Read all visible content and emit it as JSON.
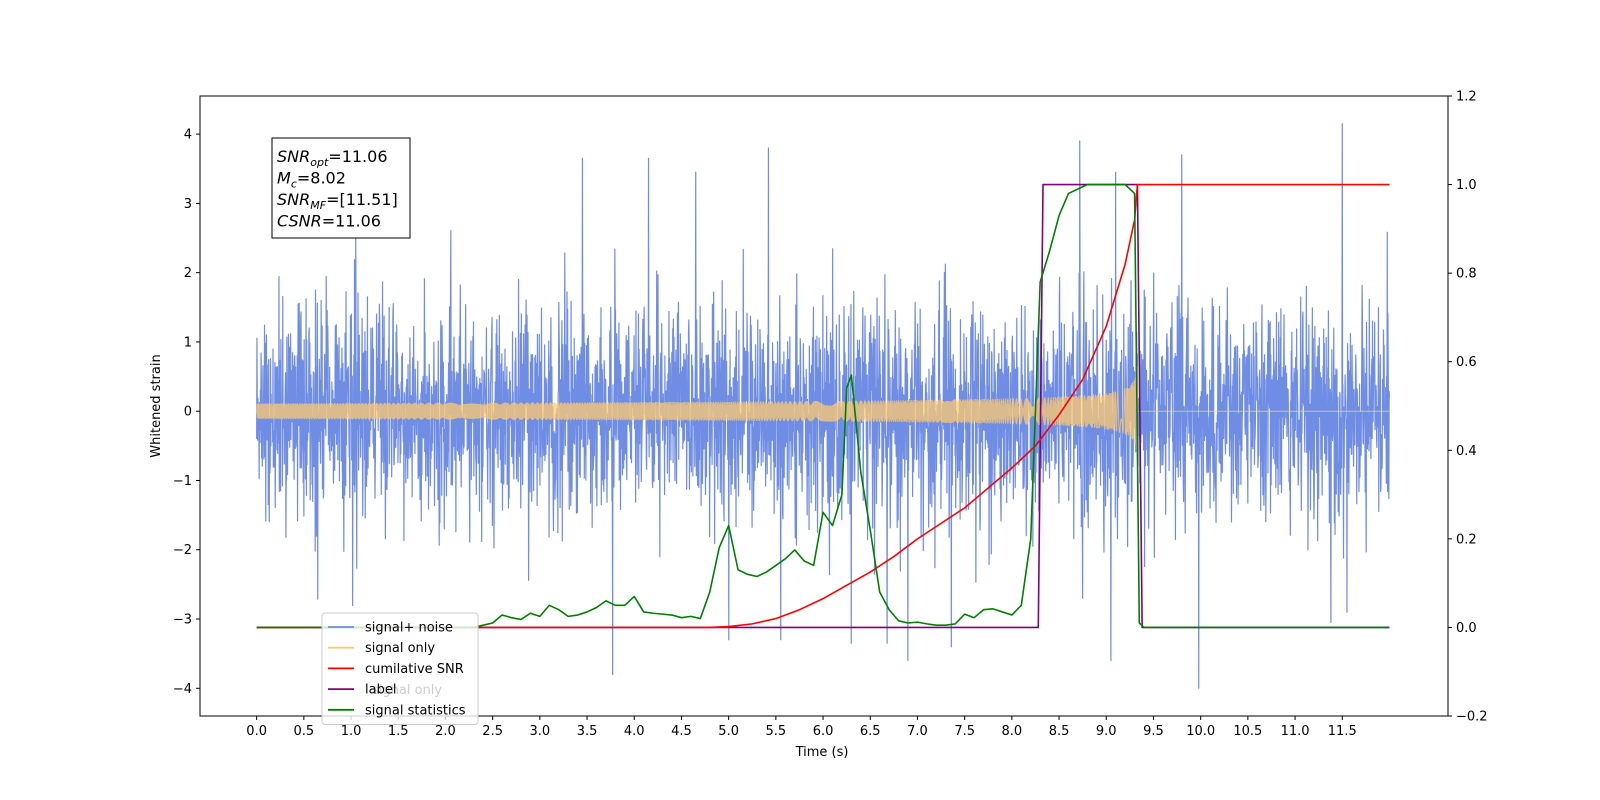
{
  "chart_data": {
    "type": "line",
    "xlabel": "Time (s)",
    "ylabel": "Whitened strain",
    "y2label": "",
    "xlim": [
      -0.6,
      12.62
    ],
    "ylim": [
      -4.4,
      4.55
    ],
    "y2lim": [
      -0.2,
      1.2
    ],
    "x_ticks": [
      0.0,
      0.5,
      1.0,
      1.5,
      2.0,
      2.5,
      3.0,
      3.5,
      4.0,
      4.5,
      5.0,
      5.5,
      6.0,
      6.5,
      7.0,
      7.5,
      8.0,
      8.5,
      9.0,
      9.5,
      10.0,
      10.5,
      11.0,
      11.5
    ],
    "x_tick_labels": [
      "0.0",
      "0.5",
      "1.0",
      "1.5",
      "2.0",
      "2.5",
      "3.0",
      "3.5",
      "4.0",
      "4.5",
      "5.0",
      "5.5",
      "6.0",
      "6.5",
      "7.0",
      "7.5",
      "8.0",
      "8.5",
      "9.0",
      "9.5",
      "10.0",
      "10.5",
      "11.0",
      "11.5"
    ],
    "y_ticks": [
      -4,
      -3,
      -2,
      -1,
      0,
      1,
      2,
      3,
      4
    ],
    "y_tick_labels": [
      "−4",
      "−3",
      "−2",
      "−1",
      "0",
      "1",
      "2",
      "3",
      "4"
    ],
    "y2_ticks": [
      -0.2,
      0.0,
      0.2,
      0.4,
      0.6,
      0.8,
      1.0,
      1.2
    ],
    "y2_tick_labels": [
      "−0.2",
      "0.0",
      "0.2",
      "0.4",
      "0.6",
      "0.8",
      "1.0",
      "1.2"
    ],
    "grid": false,
    "legend": {
      "placement": "lower-left",
      "entries": [
        {
          "name": "signal+ noise",
          "color": "#6f8de4"
        },
        {
          "name": "signal only",
          "color": "#ffc970"
        },
        {
          "name": "cumilative SNR",
          "color": "#ff0000"
        },
        {
          "name": "label",
          "color": "#800080"
        },
        {
          "name": "signal statistics",
          "color": "#008000"
        }
      ],
      "ghost_text": "signal only"
    },
    "annotation": {
      "lines": [
        {
          "name": "SNR",
          "sub": "opt",
          "value": "=11.06"
        },
        {
          "name": "M",
          "sub": "c",
          "value": "=8.02"
        },
        {
          "name": "SNR",
          "sub": "MF",
          "value": "=[11.51]"
        },
        {
          "name": "CSNR",
          "sub": "",
          "value": "=11.06"
        }
      ]
    },
    "series": [
      {
        "name": "signal+ noise",
        "axis": "left",
        "color": "#6f8de4",
        "x_range": [
          0.0,
          12.0
        ],
        "envelope_sigma": 0.75,
        "spikes": [
          [
            1.05,
            2.7
          ],
          [
            3.45,
            3.65
          ],
          [
            3.77,
            -3.8
          ],
          [
            4.15,
            3.65
          ],
          [
            4.65,
            3.45
          ],
          [
            5.0,
            -3.3
          ],
          [
            5.42,
            3.8
          ],
          [
            5.55,
            -3.3
          ],
          [
            6.3,
            -3.35
          ],
          [
            6.68,
            -3.35
          ],
          [
            6.9,
            -3.6
          ],
          [
            7.36,
            -3.4
          ],
          [
            8.72,
            3.9
          ],
          [
            8.75,
            -2.7
          ],
          [
            9.05,
            -3.6
          ],
          [
            9.1,
            3.45
          ],
          [
            9.8,
            3.7
          ],
          [
            9.98,
            -4.0
          ],
          [
            11.38,
            -3.05
          ],
          [
            11.5,
            4.15
          ],
          [
            11.55,
            -2.9
          ]
        ]
      },
      {
        "name": "signal only",
        "axis": "left",
        "color": "#ffc970",
        "x_range": [
          0.0,
          12.0
        ],
        "peak_time": 9.33,
        "peak_amplitude": 0.8
      },
      {
        "name": "cumilative SNR",
        "axis": "right",
        "color": "#ff0000",
        "x": [
          0.0,
          4.8,
          5.0,
          5.25,
          5.5,
          5.75,
          6.0,
          6.25,
          6.5,
          6.75,
          7.0,
          7.25,
          7.5,
          7.75,
          8.0,
          8.25,
          8.5,
          8.75,
          9.0,
          9.2,
          9.3,
          9.33,
          9.35,
          12.0
        ],
        "y": [
          0.0,
          0.0,
          0.002,
          0.008,
          0.02,
          0.04,
          0.065,
          0.095,
          0.125,
          0.16,
          0.2,
          0.235,
          0.27,
          0.315,
          0.36,
          0.41,
          0.48,
          0.56,
          0.68,
          0.82,
          0.92,
          1.0,
          1.0,
          1.0
        ]
      },
      {
        "name": "label",
        "axis": "right",
        "color": "#800080",
        "x": [
          0.0,
          8.28,
          8.33,
          9.33,
          9.38,
          12.0
        ],
        "y": [
          0.0,
          0.0,
          1.0,
          1.0,
          0.0,
          0.0
        ]
      },
      {
        "name": "signal statistics",
        "axis": "right",
        "color": "#008000",
        "x": [
          0.0,
          2.3,
          2.4,
          2.5,
          2.6,
          2.7,
          2.8,
          2.9,
          3.0,
          3.1,
          3.2,
          3.3,
          3.4,
          3.5,
          3.6,
          3.7,
          3.8,
          3.9,
          4.0,
          4.1,
          4.2,
          4.3,
          4.4,
          4.5,
          4.6,
          4.7,
          4.8,
          4.9,
          5.0,
          5.1,
          5.2,
          5.3,
          5.4,
          5.5,
          5.6,
          5.7,
          5.8,
          5.9,
          5.95,
          6.0,
          6.1,
          6.2,
          6.25,
          6.3,
          6.4,
          6.5,
          6.6,
          6.7,
          6.8,
          6.9,
          7.0,
          7.1,
          7.2,
          7.3,
          7.4,
          7.5,
          7.6,
          7.7,
          7.8,
          7.9,
          8.0,
          8.1,
          8.2,
          8.3,
          8.4,
          8.5,
          8.6,
          8.7,
          8.8,
          8.9,
          9.0,
          9.1,
          9.2,
          9.3,
          9.35,
          9.4,
          12.0
        ],
        "y": [
          0.0,
          0.0,
          0.005,
          0.01,
          0.028,
          0.022,
          0.018,
          0.032,
          0.025,
          0.05,
          0.04,
          0.025,
          0.028,
          0.035,
          0.045,
          0.06,
          0.05,
          0.05,
          0.07,
          0.035,
          0.032,
          0.03,
          0.028,
          0.022,
          0.025,
          0.02,
          0.08,
          0.18,
          0.23,
          0.13,
          0.12,
          0.115,
          0.125,
          0.14,
          0.155,
          0.175,
          0.15,
          0.14,
          0.2,
          0.26,
          0.23,
          0.3,
          0.54,
          0.57,
          0.35,
          0.22,
          0.08,
          0.04,
          0.015,
          0.01,
          0.012,
          0.008,
          0.005,
          0.005,
          0.008,
          0.03,
          0.022,
          0.04,
          0.042,
          0.035,
          0.028,
          0.05,
          0.2,
          0.78,
          0.85,
          0.93,
          0.98,
          0.99,
          1.0,
          1.0,
          1.0,
          1.0,
          1.0,
          0.98,
          0.01,
          0.0,
          0.0
        ]
      }
    ]
  }
}
